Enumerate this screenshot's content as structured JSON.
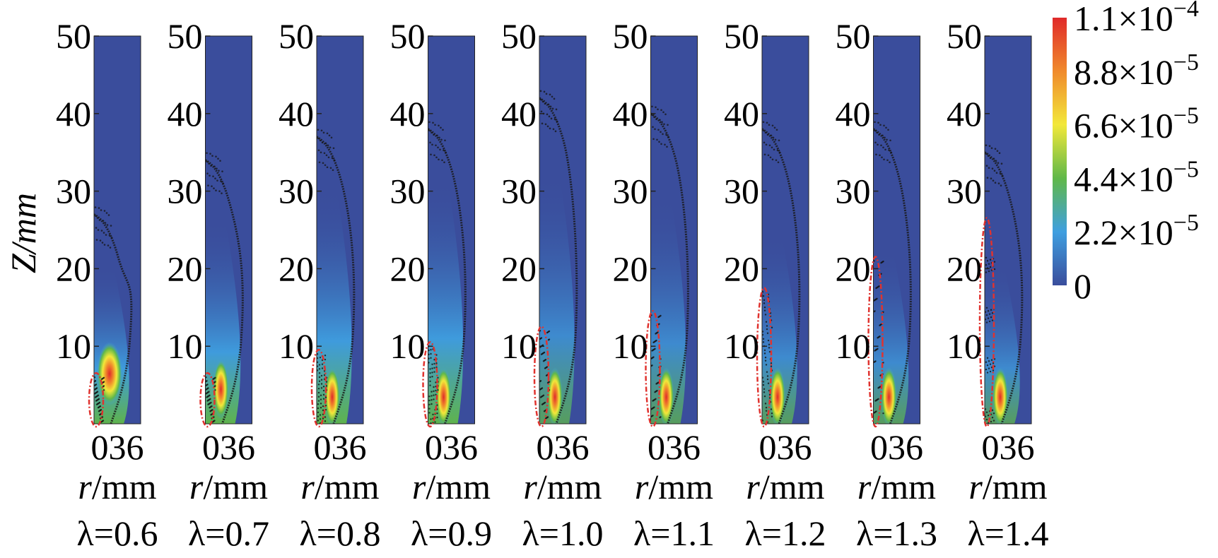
{
  "chart_data": {
    "type": "heatmap",
    "ylabel": "Z/mm",
    "ylim": [
      0,
      50
    ],
    "y_ticks": [
      "10",
      "20",
      "30",
      "40",
      "50"
    ],
    "xlim": [
      0,
      6
    ],
    "x_tick_text": "036",
    "xlabel_prefix": "r",
    "xlabel_suffix": "/mm",
    "colorbar": {
      "min": 0,
      "max": 0.00011,
      "ticks": [
        {
          "value": 0.00011,
          "mant": "1.1×10",
          "exp": "−4"
        },
        {
          "value": 8.8e-05,
          "mant": "8.8×10",
          "exp": "−5"
        },
        {
          "value": 6.6e-05,
          "mant": "6.6×10",
          "exp": "−5"
        },
        {
          "value": 4.4e-05,
          "mant": "4.4×10",
          "exp": "−5"
        },
        {
          "value": 2.2e-05,
          "mant": "2.2×10",
          "exp": "−5"
        },
        {
          "value": 0,
          "mant": "0",
          "exp": ""
        }
      ],
      "colors": [
        "#3a4d9c",
        "#3f9fe0",
        "#60b849",
        "#f2e83a",
        "#f08a2c",
        "#e02a2a"
      ]
    },
    "panels": [
      {
        "label": "λ=0.6",
        "lambda": 0.6,
        "flame_front_top_z": 27,
        "peak_z": 7,
        "peak_level": 0.92,
        "core_top_z": 22,
        "marked_region_top_z": 6
      },
      {
        "label": "λ=0.7",
        "lambda": 0.7,
        "flame_front_top_z": 34,
        "peak_z": 5,
        "peak_level": 0.9,
        "core_top_z": 28,
        "marked_region_top_z": 6
      },
      {
        "label": "λ=0.8",
        "lambda": 0.8,
        "flame_front_top_z": 37,
        "peak_z": 4,
        "peak_level": 0.88,
        "core_top_z": 32,
        "marked_region_top_z": 9
      },
      {
        "label": "λ=0.9",
        "lambda": 0.9,
        "flame_front_top_z": 38,
        "peak_z": 4,
        "peak_level": 0.86,
        "core_top_z": 33,
        "marked_region_top_z": 10
      },
      {
        "label": "λ=1.0",
        "lambda": 1.0,
        "flame_front_top_z": 42,
        "peak_z": 4,
        "peak_level": 0.86,
        "core_top_z": 34,
        "marked_region_top_z": 12
      },
      {
        "label": "λ=1.1",
        "lambda": 1.1,
        "flame_front_top_z": 40,
        "peak_z": 4,
        "peak_level": 0.84,
        "core_top_z": 31,
        "marked_region_top_z": 14
      },
      {
        "label": "λ=1.2",
        "lambda": 1.2,
        "flame_front_top_z": 38,
        "peak_z": 4,
        "peak_level": 0.84,
        "core_top_z": 26,
        "marked_region_top_z": 17
      },
      {
        "label": "λ=1.3",
        "lambda": 1.3,
        "flame_front_top_z": 38,
        "peak_z": 4,
        "peak_level": 0.84,
        "core_top_z": 24,
        "marked_region_top_z": 21
      },
      {
        "label": "λ=1.4",
        "lambda": 1.4,
        "flame_front_top_z": 35,
        "peak_z": 4,
        "peak_level": 0.84,
        "core_top_z": 22,
        "marked_region_top_z": 26
      }
    ]
  }
}
